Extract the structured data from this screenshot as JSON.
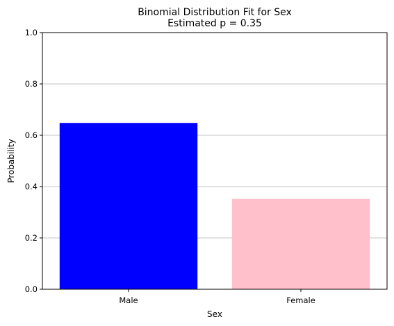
{
  "chart_data": {
    "type": "bar",
    "title": "Binomial Distribution Fit for Sex",
    "subtitle": "Estimated p = 0.35",
    "xlabel": "Sex",
    "ylabel": "Probability",
    "categories": [
      "Male",
      "Female"
    ],
    "values": [
      0.648,
      0.352
    ],
    "colors": [
      "#0000ff",
      "#ffc0cb"
    ],
    "ylim": [
      0,
      1
    ],
    "yticks": [
      0.0,
      0.2,
      0.4,
      0.6,
      0.8,
      1.0
    ],
    "ytick_labels": [
      "0.0",
      "0.2",
      "0.4",
      "0.6",
      "0.8",
      "1.0"
    ],
    "grid": "y-major",
    "legend": "none"
  }
}
